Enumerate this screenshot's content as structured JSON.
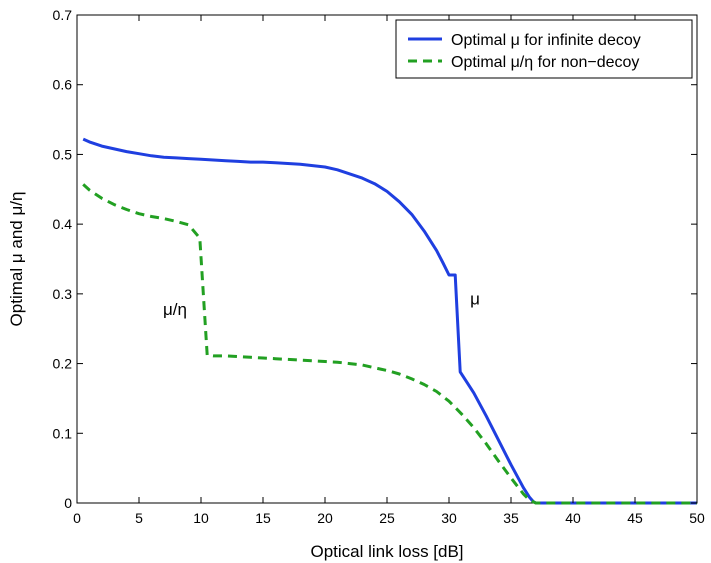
{
  "chart_data": {
    "type": "line",
    "title": "",
    "xlabel": "Optical link loss [dB]",
    "ylabel": "Optimal μ and μ/η",
    "xlim": [
      0,
      50
    ],
    "ylim": [
      0,
      0.7
    ],
    "xticks": [
      0,
      5,
      10,
      15,
      20,
      25,
      30,
      35,
      40,
      45,
      50
    ],
    "yticks": [
      0,
      0.1,
      0.2,
      0.3,
      0.4,
      0.5,
      0.6,
      0.7
    ],
    "xtick_labels": [
      "0",
      "5",
      "10",
      "15",
      "20",
      "25",
      "30",
      "35",
      "40",
      "45",
      "50"
    ],
    "ytick_labels": [
      "0",
      "0.1",
      "0.2",
      "0.3",
      "0.4",
      "0.5",
      "0.6",
      "0.7"
    ],
    "grid": false,
    "legend_position": "top-right",
    "series": [
      {
        "name": "Optimal μ for infinite decoy",
        "color": "#1f3fe0",
        "style": "solid",
        "x": [
          0.5,
          1,
          2,
          3,
          4,
          5,
          6,
          7,
          8,
          9,
          10,
          11,
          12,
          13,
          14,
          15,
          16,
          17,
          18,
          19,
          20,
          21,
          22,
          23,
          24,
          25,
          26,
          27,
          28,
          29,
          29.5,
          30,
          30.5,
          30.9,
          32,
          33,
          34,
          35,
          36,
          36.5,
          36.8,
          37,
          40,
          45,
          50
        ],
        "y": [
          0.522,
          0.518,
          0.512,
          0.508,
          0.504,
          0.501,
          0.498,
          0.496,
          0.495,
          0.494,
          0.493,
          0.492,
          0.491,
          0.49,
          0.489,
          0.489,
          0.488,
          0.487,
          0.486,
          0.484,
          0.482,
          0.478,
          0.472,
          0.466,
          0.458,
          0.447,
          0.432,
          0.414,
          0.39,
          0.362,
          0.345,
          0.327,
          0.327,
          0.188,
          0.158,
          0.125,
          0.09,
          0.055,
          0.022,
          0.008,
          0.002,
          0.0,
          0.0,
          0.0,
          0.0
        ]
      },
      {
        "name": "Optimal μ/η for non−decoy",
        "color": "#22a022",
        "style": "dashed",
        "x": [
          0.5,
          1,
          2,
          3,
          4,
          5,
          6,
          7,
          8,
          9,
          9.9,
          10.5,
          11,
          12,
          13,
          14,
          15,
          16,
          17,
          18,
          19,
          20,
          21,
          22,
          23,
          24,
          25,
          26,
          27,
          28,
          29,
          30,
          31,
          32,
          33,
          34,
          35,
          36,
          36.5,
          37,
          40,
          45,
          50
        ],
        "y": [
          0.457,
          0.449,
          0.437,
          0.428,
          0.421,
          0.415,
          0.411,
          0.408,
          0.404,
          0.399,
          0.38,
          0.212,
          0.211,
          0.211,
          0.21,
          0.209,
          0.208,
          0.207,
          0.206,
          0.205,
          0.204,
          0.203,
          0.202,
          0.2,
          0.198,
          0.194,
          0.19,
          0.185,
          0.178,
          0.17,
          0.16,
          0.146,
          0.128,
          0.108,
          0.085,
          0.06,
          0.036,
          0.013,
          0.004,
          0.0,
          0.0,
          0.0,
          0.0
        ]
      }
    ],
    "annotations": [
      {
        "text": "μ/η",
        "x": 7.9,
        "y": 0.27
      },
      {
        "text": "μ",
        "x": 32.1,
        "y": 0.285
      }
    ]
  }
}
